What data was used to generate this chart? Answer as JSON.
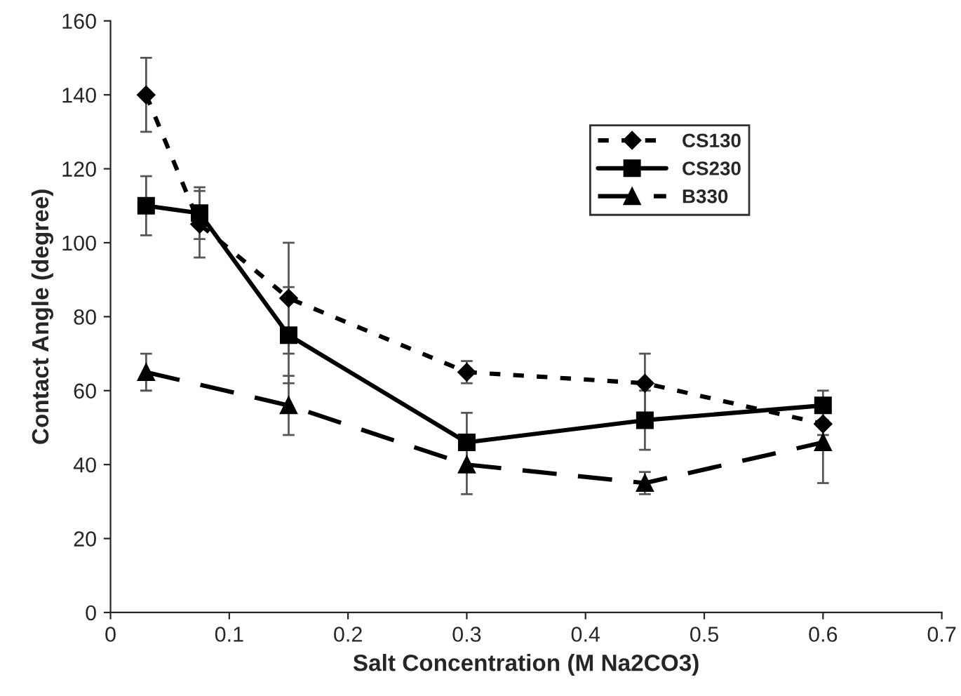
{
  "chart_data": {
    "type": "line",
    "xlabel": "Salt Concentration (M Na2CO3)",
    "ylabel": "Contact Angle (degree)",
    "x": [
      0.03,
      0.075,
      0.15,
      0.3,
      0.45,
      0.6
    ],
    "series": [
      {
        "name": "CS130",
        "color": "#000000",
        "marker": "diamond",
        "line_style": "dotted",
        "values": [
          140,
          105,
          85,
          65,
          62,
          51
        ],
        "errors": [
          10,
          9,
          15,
          3,
          8,
          3
        ]
      },
      {
        "name": "CS230",
        "color": "#000000",
        "marker": "square",
        "line_style": "solid",
        "values": [
          110,
          108,
          75,
          46,
          52,
          56
        ],
        "errors": [
          8,
          7,
          13,
          8,
          8,
          4
        ]
      },
      {
        "name": "B330",
        "color": "#000000",
        "marker": "triangle",
        "line_style": "dashed",
        "values": [
          65,
          null,
          56,
          40,
          35,
          46
        ],
        "errors": [
          5,
          null,
          8,
          8,
          3,
          11
        ]
      }
    ],
    "xlim": [
      0,
      0.7
    ],
    "xticks": [
      0,
      0.1,
      0.2,
      0.3,
      0.4,
      0.5,
      0.6,
      0.7
    ],
    "ylim": [
      0,
      160
    ],
    "yticks": [
      0,
      20,
      40,
      60,
      80,
      100,
      120,
      140,
      160
    ],
    "grid": false,
    "legend": "top right"
  }
}
